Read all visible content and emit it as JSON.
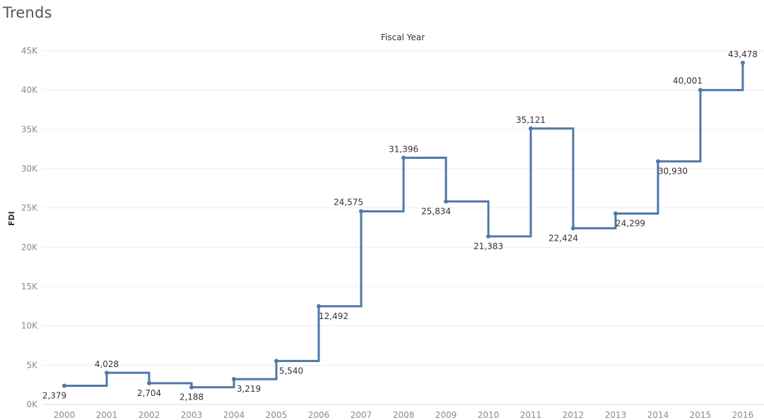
{
  "header": {
    "title": "Trends"
  },
  "chart_data": {
    "type": "line",
    "step": true,
    "title": "",
    "xlabel": "Fiscal Year",
    "ylabel": "FDI",
    "ylim": [
      0,
      45000
    ],
    "y_ticks": [
      0,
      5000,
      10000,
      15000,
      20000,
      25000,
      30000,
      35000,
      40000,
      45000
    ],
    "y_tick_labels": [
      "0K",
      "5K",
      "10K",
      "15K",
      "20K",
      "25K",
      "30K",
      "35K",
      "40K",
      "45K"
    ],
    "grid": true,
    "categories": [
      "2000",
      "2001",
      "2002",
      "2003",
      "2004",
      "2005",
      "2006",
      "2007",
      "2008",
      "2009",
      "2010",
      "2011",
      "2012",
      "2013",
      "2014",
      "2015",
      "2016"
    ],
    "series": [
      {
        "values": [
          2379,
          4028,
          2704,
          2188,
          3219,
          5540,
          12492,
          24575,
          31396,
          25834,
          21383,
          35121,
          22424,
          24299,
          30930,
          40001,
          43478
        ],
        "labels": [
          "2,379",
          "4,028",
          "2,704",
          "2,188",
          "3,219",
          "5,540",
          "12,492",
          "24,575",
          "31,396",
          "25,834",
          "21,383",
          "35,121",
          "22,424",
          "24,299",
          "30,930",
          "40,001",
          "43,478"
        ]
      }
    ],
    "line_color": "#4e79a7"
  }
}
